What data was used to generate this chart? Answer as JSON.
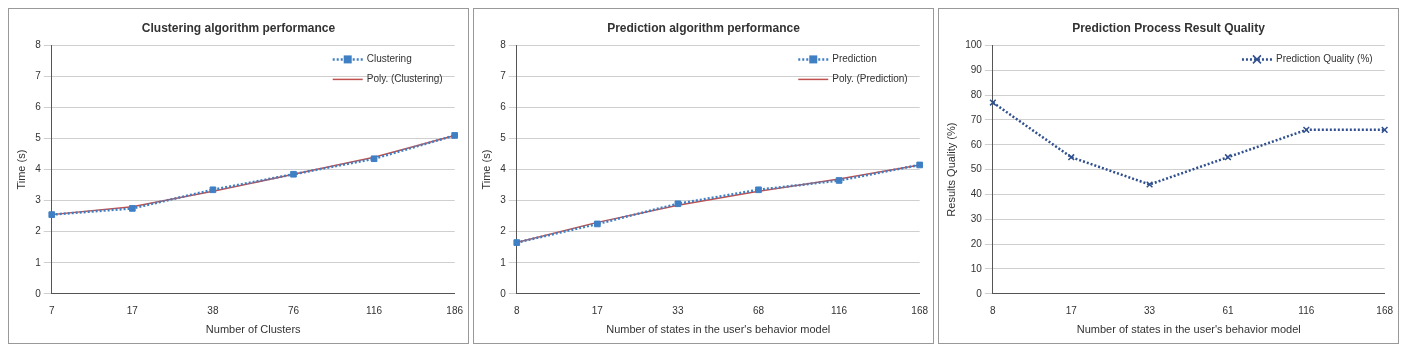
{
  "chart_data": [
    {
      "type": "line",
      "title": "Clustering algorithm performance",
      "xlabel": "Number of Clusters",
      "ylabel": "Time (s)",
      "categories": [
        "7",
        "17",
        "38",
        "76",
        "116",
        "186"
      ],
      "series": [
        {
          "name": "Clustering",
          "color": "#3f7fc4",
          "values": [
            2.55,
            2.75,
            3.35,
            3.85,
            4.35,
            5.1
          ],
          "marker": "square",
          "line_style": "dotted"
        },
        {
          "name": "Poly. (Clustering)",
          "type": "line",
          "color": "#c0504d",
          "values": [
            2.55,
            2.8,
            3.3,
            3.85,
            4.4,
            5.1
          ],
          "marker": "none",
          "line_style": "solid"
        }
      ],
      "ylim": [
        0,
        8
      ],
      "yticks": [
        0,
        1,
        2,
        3,
        4,
        5,
        6,
        7,
        8
      ],
      "grid": "y",
      "legend": "top right"
    },
    {
      "type": "line",
      "title": "Prediction algorithm performance",
      "xlabel": "Number of states in the user's behavior model",
      "ylabel": "Time (s)",
      "categories": [
        "8",
        "17",
        "33",
        "68",
        "116",
        "168"
      ],
      "series": [
        {
          "name": "Prediction",
          "color": "#3f7fc4",
          "values": [
            1.65,
            2.25,
            2.9,
            3.35,
            3.65,
            4.15
          ],
          "marker": "square",
          "line_style": "dotted"
        },
        {
          "name": "Poly. (Prediction)",
          "type": "line",
          "color": "#c0504d",
          "values": [
            1.65,
            2.3,
            2.85,
            3.3,
            3.7,
            4.15
          ],
          "marker": "none",
          "line_style": "solid"
        }
      ],
      "ylim": [
        0,
        8
      ],
      "yticks": [
        0,
        1,
        2,
        3,
        4,
        5,
        6,
        7,
        8
      ],
      "grid": "y",
      "legend": "top right"
    },
    {
      "type": "line",
      "title": "Prediction Process Result Quality",
      "xlabel": "Number of states in the user's behavior model",
      "ylabel": "Results Quality (%)",
      "categories": [
        "8",
        "17",
        "33",
        "61",
        "116",
        "168"
      ],
      "series": [
        {
          "name": "Prediction Quality (%)",
          "color": "#2f4f8f",
          "values": [
            77,
            55,
            44,
            55,
            66,
            66
          ],
          "marker": "cross",
          "line_style": "dotted"
        }
      ],
      "ylim": [
        0,
        100
      ],
      "yticks": [
        0,
        10,
        20,
        30,
        40,
        50,
        60,
        70,
        80,
        90,
        100
      ],
      "grid": "y",
      "legend": "top right"
    }
  ]
}
